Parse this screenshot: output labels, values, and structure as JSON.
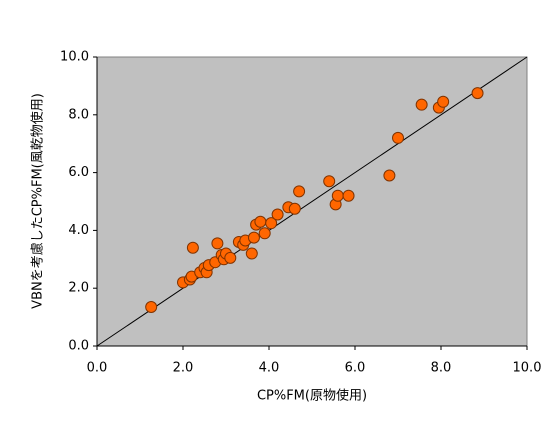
{
  "chart_data": {
    "type": "scatter",
    "xlabel": "CP%FM(原物使用)",
    "ylabel": "VBNを考慮したCP%FM(風乾物使用)",
    "x": [
      1.26,
      2.0,
      2.16,
      2.23,
      2.2,
      2.4,
      2.5,
      2.55,
      2.6,
      2.75,
      2.8,
      2.9,
      2.95,
      3.0,
      3.1,
      3.3,
      3.4,
      3.45,
      3.6,
      3.65,
      3.7,
      3.8,
      3.9,
      4.05,
      4.2,
      4.45,
      4.6,
      4.7,
      5.4,
      5.55,
      5.6,
      5.85,
      6.8,
      7.0,
      7.55,
      7.95,
      8.05,
      8.85
    ],
    "values": [
      1.35,
      2.2,
      2.3,
      3.4,
      2.4,
      2.55,
      2.7,
      2.55,
      2.8,
      2.9,
      3.55,
      3.15,
      3.0,
      3.2,
      3.05,
      3.6,
      3.5,
      3.65,
      3.2,
      3.75,
      4.2,
      4.3,
      3.9,
      4.25,
      4.55,
      4.8,
      4.75,
      5.35,
      5.7,
      4.9,
      5.2,
      5.2,
      5.9,
      7.2,
      8.35,
      8.25,
      8.45,
      8.75
    ],
    "color": "#ff6600",
    "xlim": [
      0,
      10
    ],
    "ylim": [
      0,
      10
    ],
    "xticks": [
      {
        "value": 0,
        "label": "0.0"
      },
      {
        "value": 2,
        "label": "2.0"
      },
      {
        "value": 4,
        "label": "4.0"
      },
      {
        "value": 6,
        "label": "6.0"
      },
      {
        "value": 8,
        "label": "8.0"
      },
      {
        "value": 10,
        "label": "10.0"
      }
    ],
    "yticks": [
      {
        "value": 0,
        "label": "0.0"
      },
      {
        "value": 2,
        "label": "2.0"
      },
      {
        "value": 4,
        "label": "4.0"
      },
      {
        "value": 6,
        "label": "6.0"
      },
      {
        "value": 8,
        "label": "8.0"
      },
      {
        "value": 10,
        "label": "10.0"
      }
    ]
  }
}
